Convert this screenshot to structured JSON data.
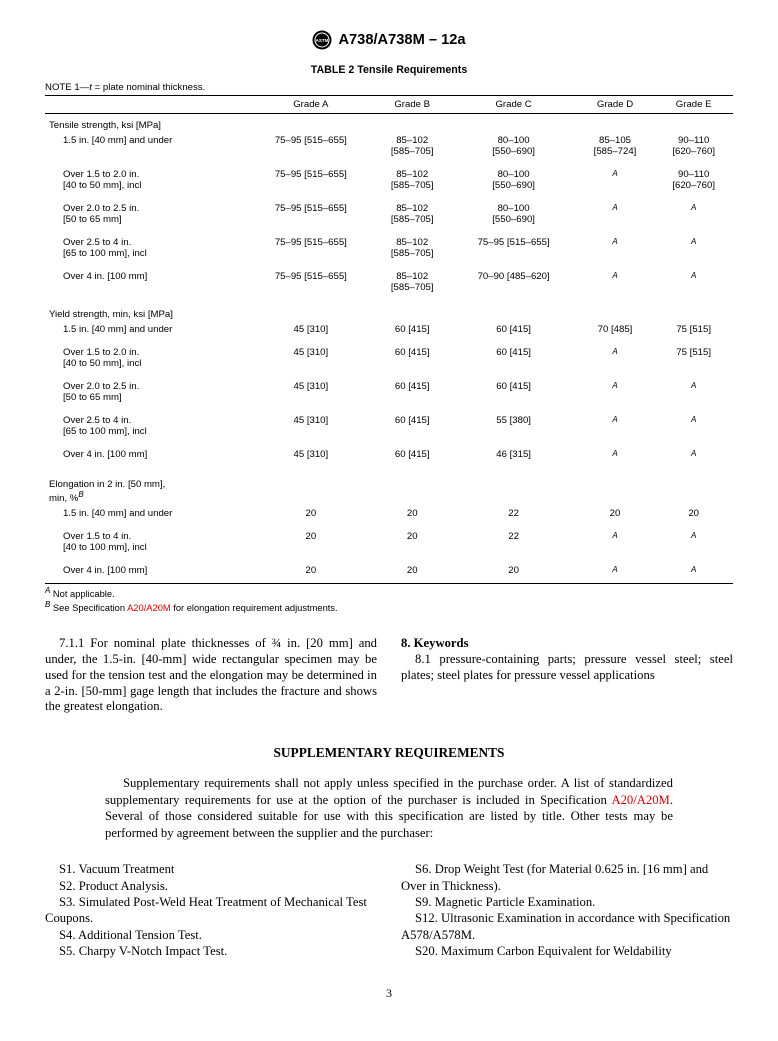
{
  "header": {
    "doc_id": "A738/A738M – 12a"
  },
  "table": {
    "title": "TABLE 2 Tensile Requirements",
    "note": "NOTE 1—t = plate nominal thickness.",
    "columns": [
      "",
      "Grade A",
      "Grade B",
      "Grade C",
      "Grade D",
      "Grade E"
    ],
    "sections": [
      {
        "label": "Tensile strength, ksi [MPa]",
        "rows": [
          {
            "label": "1.5 in. [40 mm] and under",
            "cells": [
              "75–95 [515–655]",
              "85–102\n[585–705]",
              "80–100\n[550–690]",
              "85–105\n[585–724]",
              "90–110\n[620–760]"
            ]
          },
          {
            "label": "Over 1.5 to 2.0 in.\n[40 to 50 mm], incl",
            "cells": [
              "75–95 [515–655]",
              "85–102\n[585–705]",
              "80–100\n[550–690]",
              "A",
              "90–110\n[620–760]"
            ]
          },
          {
            "label": "Over 2.0 to 2.5 in.\n[50 to 65 mm]",
            "cells": [
              "75–95 [515–655]",
              "85–102\n[585–705]",
              "80–100\n[550–690]",
              "A",
              "A"
            ]
          },
          {
            "label": "Over 2.5 to 4 in.\n[65 to 100 mm], incl",
            "cells": [
              "75–95 [515–655]",
              "85–102\n[585–705]",
              "75–95 [515–655]",
              "A",
              "A"
            ]
          },
          {
            "label": "Over 4 in. [100 mm]",
            "cells": [
              "75–95 [515–655]",
              "85–102\n[585–705]",
              "70–90 [485–620]",
              "A",
              "A"
            ]
          }
        ]
      },
      {
        "label": "Yield strength, min, ksi [MPa]",
        "rows": [
          {
            "label": "1.5 in. [40 mm] and under",
            "cells": [
              "45 [310]",
              "60 [415]",
              "60 [415]",
              "70 [485]",
              "75 [515]"
            ]
          },
          {
            "label": "Over 1.5 to 2.0 in.\n[40 to 50 mm], incl",
            "cells": [
              "45 [310]",
              "60 [415]",
              "60 [415]",
              "A",
              "75 [515]"
            ]
          },
          {
            "label": "Over 2.0 to 2.5 in.\n[50 to 65 mm]",
            "cells": [
              "45 [310]",
              "60 [415]",
              "60 [415]",
              "A",
              "A"
            ]
          },
          {
            "label": "Over 2.5 to 4 in.\n[65 to 100 mm], incl",
            "cells": [
              "45 [310]",
              "60 [415]",
              "55 [380]",
              "A",
              "A"
            ]
          },
          {
            "label": "Over 4 in. [100 mm]",
            "cells": [
              "45 [310]",
              "60 [415]",
              "46 [315]",
              "A",
              "A"
            ]
          }
        ]
      },
      {
        "label": "Elongation in 2 in. [50 mm],\nmin, %<sup>B</sup>",
        "rows": [
          {
            "label": "1.5 in. [40 mm] and under",
            "cells": [
              "20",
              "20",
              "22",
              "20",
              "20"
            ]
          },
          {
            "label": "Over 1.5 to 4 in.\n[40 to 100 mm], incl",
            "cells": [
              "20",
              "20",
              "22",
              "A",
              "A"
            ]
          },
          {
            "label": "Over 4 in. [100 mm]",
            "cells": [
              "20",
              "20",
              "20",
              "A",
              "A"
            ]
          }
        ]
      }
    ],
    "footnotes": [
      {
        "mark": "A",
        "text": "Not applicable."
      },
      {
        "mark": "B",
        "text_pre": "See Specification ",
        "link": "A20/A20M",
        "text_post": " for elongation requirement adjustments."
      }
    ]
  },
  "body": {
    "left": "7.1.1 For nominal plate thicknesses of ¾ in. [20 mm] and under, the 1.5-in. [40-mm] wide rectangular specimen may be used for the tension test and the elongation may be determined in a 2-in. [50-mm] gage length that includes the fracture and shows the greatest elongation.",
    "right_heading": "8. Keywords",
    "right_text": "8.1 pressure-containing parts; pressure vessel steel; steel plates; steel plates for pressure vessel applications"
  },
  "supp": {
    "title": "SUPPLEMENTARY REQUIREMENTS",
    "intro_pre": "Supplementary requirements shall not apply unless specified in the purchase order.   A list of standardized supplementary requirements for use at the option of the purchaser is included in Specification ",
    "intro_link": "A20/A20M",
    "intro_post": ". Several of those considered suitable for use with this specification are listed by title. Other tests may be performed by agreement between the supplier and the purchaser:",
    "left": [
      "S1. Vacuum Treatment",
      "S2. Product Analysis.",
      "S3. Simulated Post-Weld Heat Treatment of Mechanical Test Coupons.",
      "S4. Additional Tension Test.",
      "S5. Charpy V-Notch Impact Test."
    ],
    "right": [
      "S6. Drop Weight Test (for Material 0.625 in. [16 mm] and Over in Thickness).",
      "S9. Magnetic Particle Examination.",
      "S12. Ultrasonic Examination in accordance with Specification A578/A578M.",
      "S20. Maximum Carbon Equivalent for Weldability"
    ]
  },
  "page_number": "3"
}
